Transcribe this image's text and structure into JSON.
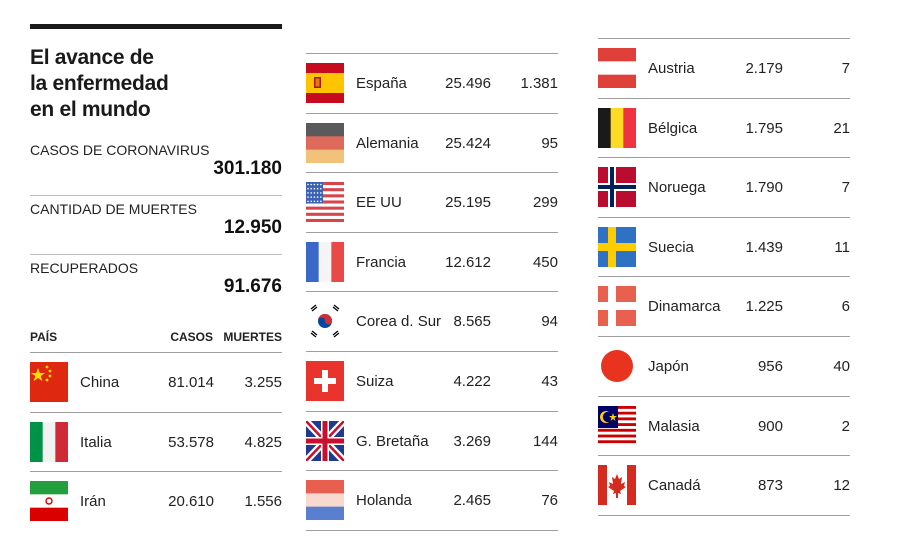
{
  "title_lines": [
    "El avance de",
    "la enfermedad",
    "en el mundo"
  ],
  "stats": [
    {
      "label": "CASOS DE CORONAVIRUS",
      "value": "301.180"
    },
    {
      "label": "CANTIDAD DE MUERTES",
      "value": "12.950"
    },
    {
      "label": "RECUPERADOS",
      "value": "91.676"
    }
  ],
  "headers": {
    "country": "PAÍS",
    "cases": "CASOS",
    "deaths": "MUERTES"
  },
  "columns": [
    [
      {
        "country": "China",
        "cases": "81.014",
        "deaths": "3.255",
        "flag": "china-flag-icon"
      },
      {
        "country": "Italia",
        "cases": "53.578",
        "deaths": "4.825",
        "flag": "italy-flag-icon"
      },
      {
        "country": "Irán",
        "cases": "20.610",
        "deaths": "1.556",
        "flag": "iran-flag-icon"
      }
    ],
    [
      {
        "country": "España",
        "cases": "25.496",
        "deaths": "1.381",
        "flag": "spain-flag-icon"
      },
      {
        "country": "Alemania",
        "cases": "25.424",
        "deaths": "95",
        "flag": "germany-flag-icon"
      },
      {
        "country": "EE UU",
        "cases": "25.195",
        "deaths": "299",
        "flag": "usa-flag-icon"
      },
      {
        "country": "Francia",
        "cases": "12.612",
        "deaths": "450",
        "flag": "france-flag-icon"
      },
      {
        "country": "Corea d. Sur",
        "cases": "8.565",
        "deaths": "94",
        "flag": "south-korea-flag-icon"
      },
      {
        "country": "Suiza",
        "cases": "4.222",
        "deaths": "43",
        "flag": "switzerland-flag-icon"
      },
      {
        "country": "G. Bretaña",
        "cases": "3.269",
        "deaths": "144",
        "flag": "uk-flag-icon"
      },
      {
        "country": "Holanda",
        "cases": "2.465",
        "deaths": "76",
        "flag": "netherlands-flag-icon"
      }
    ],
    [
      {
        "country": "Austria",
        "cases": "2.179",
        "deaths": "7",
        "flag": "austria-flag-icon"
      },
      {
        "country": "Bélgica",
        "cases": "1.795",
        "deaths": "21",
        "flag": "belgium-flag-icon"
      },
      {
        "country": "Noruega",
        "cases": "1.790",
        "deaths": "7",
        "flag": "norway-flag-icon"
      },
      {
        "country": "Suecia",
        "cases": "1.439",
        "deaths": "11",
        "flag": "sweden-flag-icon"
      },
      {
        "country": "Dinamarca",
        "cases": "1.225",
        "deaths": "6",
        "flag": "denmark-flag-icon"
      },
      {
        "country": "Japón",
        "cases": "956",
        "deaths": "40",
        "flag": "japan-flag-icon"
      },
      {
        "country": "Malasia",
        "cases": "900",
        "deaths": "2",
        "flag": "malaysia-flag-icon"
      },
      {
        "country": "Canadá",
        "cases": "873",
        "deaths": "12",
        "flag": "canada-flag-icon"
      }
    ]
  ]
}
